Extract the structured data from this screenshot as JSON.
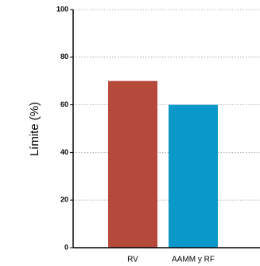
{
  "chart_data": {
    "type": "bar",
    "title": "",
    "xlabel": "",
    "ylabel": "Límite (%)",
    "ylim": [
      0,
      100
    ],
    "yticks": [
      0,
      20,
      40,
      60,
      80,
      100
    ],
    "categories": [
      "RV",
      "AAMM y RF"
    ],
    "values": [
      70,
      60
    ],
    "colors": [
      "#b5493c",
      "#0a98c8"
    ],
    "grid": "horizontal-dotted",
    "legend": "none"
  }
}
